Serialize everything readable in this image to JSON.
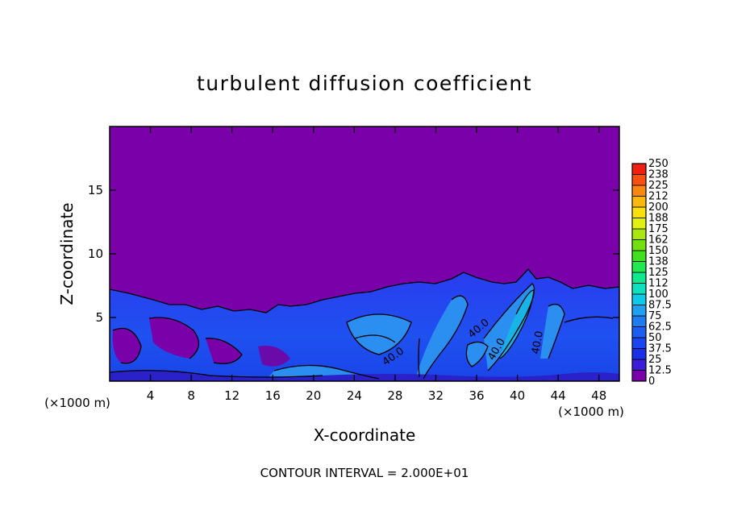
{
  "chart_data": {
    "type": "heatmap",
    "title": "turbulent diffusion coefficient",
    "xlabel": "X-coordinate",
    "ylabel": "Z-coordinate",
    "x_unit": "(×1000 m)",
    "y_unit": "(×1000 m)",
    "footer": "CONTOUR INTERVAL = 2.000E+01",
    "xlim": [
      0,
      50
    ],
    "ylim": [
      0,
      20
    ],
    "x_ticks": [
      4,
      8,
      12,
      16,
      20,
      24,
      28,
      32,
      36,
      40,
      44,
      48
    ],
    "y_ticks": [
      5,
      10,
      15
    ],
    "colorbar": {
      "labels": [
        "0",
        "12.5",
        "25",
        "37.5",
        "50",
        "62.5",
        "75",
        "87.5",
        "100",
        "112",
        "125",
        "138",
        "150",
        "162",
        "175",
        "188",
        "200",
        "212",
        "225",
        "238",
        "250"
      ],
      "colors": [
        "#7a00aa",
        "#3a1ed8",
        "#1a2fe8",
        "#1a45f0",
        "#1d5ef2",
        "#1f7cf0",
        "#20a0f0",
        "#10c8e8",
        "#10e0c0",
        "#10e890",
        "#20e850",
        "#40e020",
        "#70e010",
        "#a8e810",
        "#e0f010",
        "#f8e010",
        "#f8b810",
        "#f88810",
        "#f85010",
        "#f02010",
        "#f07a80"
      ]
    },
    "contour_labels": [
      "40.0",
      "40.0",
      "40.0",
      "40.0"
    ]
  }
}
